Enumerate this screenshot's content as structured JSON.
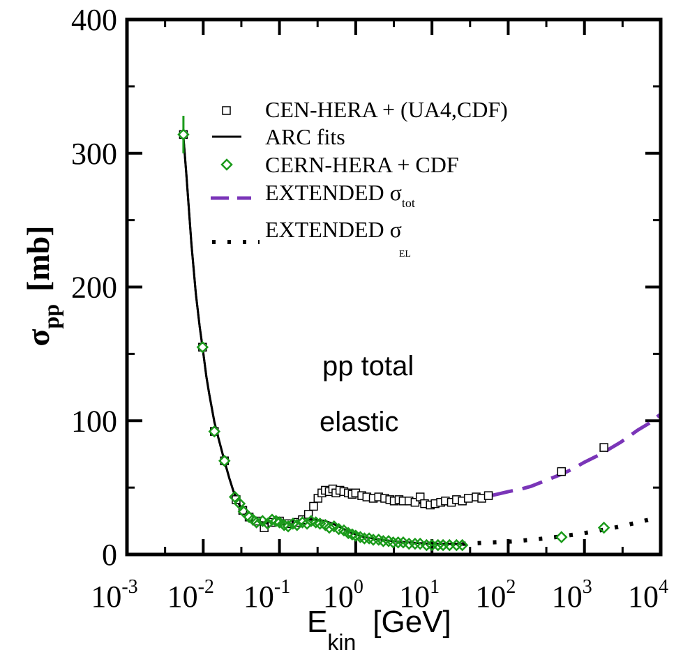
{
  "chart_data": {
    "type": "scatter",
    "x_scale": "log",
    "x_range": [
      0.001,
      10000
    ],
    "y_range": [
      0,
      400
    ],
    "x_ticks": [
      {
        "value": 0.001,
        "base": "10",
        "exp": "-3"
      },
      {
        "value": 0.01,
        "base": "10",
        "exp": "-2"
      },
      {
        "value": 0.1,
        "base": "10",
        "exp": "-1"
      },
      {
        "value": 1,
        "base": "10",
        "exp": "0"
      },
      {
        "value": 10,
        "base": "10",
        "exp": "1"
      },
      {
        "value": 100,
        "base": "10",
        "exp": "2"
      },
      {
        "value": 1000,
        "base": "10",
        "exp": "3"
      },
      {
        "value": 10000,
        "base": "10",
        "exp": "4"
      }
    ],
    "y_ticks": [
      {
        "value": 0,
        "label": "0"
      },
      {
        "value": 100,
        "label": "100"
      },
      {
        "value": 200,
        "label": "200"
      },
      {
        "value": 300,
        "label": "300"
      },
      {
        "value": 400,
        "label": "400"
      }
    ],
    "y_minor": [
      50,
      150,
      250,
      350
    ],
    "xlabel": {
      "main": "E",
      "sub": "kin",
      "unit": "[GeV]"
    },
    "ylabel": {
      "main": "σ",
      "sub": "pp",
      "unit": "[mb]"
    },
    "annotations": [
      {
        "text": "pp total",
        "x": 0.8,
        "y": 140
      },
      {
        "text": "elastic",
        "x": 0.8,
        "y": 100
      }
    ],
    "legend": {
      "placement": "top",
      "entries": [
        {
          "id": "total-data",
          "text": "CEN-HERA + (UA4,CDF)",
          "sub": ""
        },
        {
          "id": "fit",
          "text": "ARC fits",
          "sub": ""
        },
        {
          "id": "elastic-data",
          "text": "CERN-HERA + CDF",
          "sub": ""
        },
        {
          "id": "ext-tot",
          "text": "EXTENDED σ",
          "sub": "tot"
        },
        {
          "id": "ext-el",
          "text": "EXTENDED σ",
          "sub": "EL"
        }
      ]
    },
    "colors": {
      "fit": "#000000",
      "total_markers": "#000000",
      "elastic_markers": "#1a9a1a",
      "ext_tot": "#7a35b8",
      "ext_el": "#000000"
    },
    "series": [
      {
        "id": "total-data",
        "points": [
          [
            0.0055,
            314
          ],
          [
            0.0098,
            155
          ],
          [
            0.014,
            92
          ],
          [
            0.019,
            70
          ],
          [
            0.027,
            41
          ],
          [
            0.033,
            33
          ],
          [
            0.04,
            28
          ],
          [
            0.05,
            25
          ],
          [
            0.063,
            20
          ],
          [
            0.08,
            24
          ],
          [
            0.1,
            25
          ],
          [
            0.13,
            23
          ],
          [
            0.17,
            24
          ],
          [
            0.2,
            26
          ],
          [
            0.24,
            30
          ],
          [
            0.28,
            36
          ],
          [
            0.32,
            42
          ],
          [
            0.36,
            46
          ],
          [
            0.4,
            48
          ],
          [
            0.45,
            47
          ],
          [
            0.5,
            49
          ],
          [
            0.55,
            46
          ],
          [
            0.62,
            48
          ],
          [
            0.7,
            47
          ],
          [
            0.8,
            46
          ],
          [
            0.9,
            45
          ],
          [
            1.0,
            46
          ],
          [
            1.2,
            44
          ],
          [
            1.4,
            43
          ],
          [
            1.7,
            42
          ],
          [
            2.0,
            43
          ],
          [
            2.4,
            42
          ],
          [
            2.8,
            41
          ],
          [
            3.2,
            40
          ],
          [
            3.7,
            41
          ],
          [
            4.2,
            40
          ],
          [
            5.0,
            40
          ],
          [
            6.0,
            39
          ],
          [
            7.0,
            43
          ],
          [
            8.0,
            38
          ],
          [
            9.5,
            37
          ],
          [
            11,
            38
          ],
          [
            13,
            39
          ],
          [
            15,
            40
          ],
          [
            18,
            39
          ],
          [
            21,
            41
          ],
          [
            25,
            40
          ],
          [
            30,
            42
          ],
          [
            38,
            43
          ],
          [
            45,
            42
          ],
          [
            55,
            44
          ],
          [
            500,
            62
          ],
          [
            1800,
            80
          ]
        ]
      },
      {
        "id": "elastic-data",
        "points": [
          [
            0.0055,
            314
          ],
          [
            0.0098,
            155
          ],
          [
            0.014,
            92
          ],
          [
            0.019,
            70
          ],
          [
            0.026,
            43
          ],
          [
            0.03,
            38
          ],
          [
            0.034,
            32
          ],
          [
            0.04,
            28
          ],
          [
            0.045,
            26
          ],
          [
            0.05,
            24
          ],
          [
            0.06,
            25
          ],
          [
            0.07,
            23
          ],
          [
            0.08,
            26
          ],
          [
            0.09,
            25
          ],
          [
            0.1,
            24
          ],
          [
            0.115,
            22
          ],
          [
            0.13,
            21
          ],
          [
            0.15,
            23
          ],
          [
            0.17,
            22
          ],
          [
            0.2,
            24
          ],
          [
            0.23,
            23
          ],
          [
            0.26,
            25
          ],
          [
            0.3,
            24
          ],
          [
            0.34,
            23
          ],
          [
            0.4,
            22
          ],
          [
            0.45,
            20
          ],
          [
            0.52,
            21
          ],
          [
            0.6,
            19
          ],
          [
            0.7,
            18
          ],
          [
            0.8,
            16
          ],
          [
            0.9,
            15
          ],
          [
            1.0,
            14
          ],
          [
            1.15,
            13
          ],
          [
            1.3,
            12
          ],
          [
            1.5,
            12
          ],
          [
            1.7,
            11
          ],
          [
            2.0,
            11
          ],
          [
            2.3,
            10
          ],
          [
            2.7,
            10
          ],
          [
            3.1,
            9
          ],
          [
            3.6,
            9
          ],
          [
            4.2,
            9
          ],
          [
            5.0,
            8
          ],
          [
            6.0,
            8
          ],
          [
            7.0,
            8
          ],
          [
            8.5,
            7
          ],
          [
            10,
            7
          ],
          [
            12,
            7
          ],
          [
            14,
            7
          ],
          [
            17,
            7
          ],
          [
            21,
            7
          ],
          [
            25,
            7
          ],
          [
            500,
            13
          ],
          [
            1800,
            20
          ]
        ]
      },
      {
        "id": "fit-total",
        "points": [
          [
            0.0055,
            312
          ],
          [
            0.006,
            285
          ],
          [
            0.007,
            232
          ],
          [
            0.008,
            195
          ],
          [
            0.009,
            170
          ],
          [
            0.0098,
            155
          ],
          [
            0.011,
            133
          ],
          [
            0.012,
            120
          ],
          [
            0.014,
            99
          ],
          [
            0.016,
            86
          ],
          [
            0.019,
            70
          ],
          [
            0.022,
            57
          ],
          [
            0.025,
            47
          ],
          [
            0.028,
            40
          ],
          [
            0.032,
            34
          ],
          [
            0.036,
            30
          ],
          [
            0.04,
            28
          ],
          [
            0.05,
            25
          ],
          [
            0.06,
            24
          ],
          [
            0.08,
            24
          ],
          [
            0.1,
            24
          ],
          [
            0.13,
            24
          ],
          [
            0.17,
            25
          ],
          [
            0.2,
            26
          ],
          [
            0.24,
            29
          ],
          [
            0.28,
            35
          ],
          [
            0.32,
            41
          ],
          [
            0.36,
            45
          ],
          [
            0.4,
            47
          ],
          [
            0.45,
            48
          ],
          [
            0.5,
            48
          ],
          [
            0.6,
            47
          ],
          [
            0.7,
            46
          ],
          [
            0.8,
            45
          ],
          [
            1.0,
            44
          ],
          [
            1.3,
            43
          ],
          [
            1.7,
            42
          ],
          [
            2.2,
            41
          ],
          [
            3.0,
            40
          ],
          [
            4.0,
            39.5
          ],
          [
            5.0,
            39
          ],
          [
            7.0,
            38.5
          ],
          [
            10,
            38
          ],
          [
            15,
            39
          ],
          [
            20,
            40
          ],
          [
            30,
            41
          ],
          [
            45,
            42
          ],
          [
            60,
            42.5
          ]
        ]
      },
      {
        "id": "fit-elastic",
        "points": [
          [
            0.0055,
            312
          ],
          [
            0.006,
            285
          ],
          [
            0.007,
            232
          ],
          [
            0.008,
            195
          ],
          [
            0.009,
            170
          ],
          [
            0.0098,
            155
          ],
          [
            0.011,
            133
          ],
          [
            0.012,
            120
          ],
          [
            0.014,
            99
          ],
          [
            0.016,
            86
          ],
          [
            0.019,
            70
          ],
          [
            0.022,
            57
          ],
          [
            0.025,
            47
          ],
          [
            0.028,
            40
          ],
          [
            0.032,
            34
          ],
          [
            0.036,
            30
          ],
          [
            0.04,
            28
          ],
          [
            0.05,
            25
          ],
          [
            0.06,
            24
          ],
          [
            0.08,
            24
          ],
          [
            0.1,
            24
          ],
          [
            0.13,
            24
          ],
          [
            0.17,
            25
          ],
          [
            0.2,
            25
          ],
          [
            0.25,
            26
          ],
          [
            0.3,
            26
          ],
          [
            0.35,
            25.5
          ],
          [
            0.4,
            25
          ],
          [
            0.5,
            23
          ],
          [
            0.6,
            21
          ],
          [
            0.7,
            19
          ],
          [
            0.8,
            17
          ],
          [
            1.0,
            15
          ],
          [
            1.3,
            13
          ],
          [
            1.7,
            12
          ],
          [
            2.2,
            11
          ],
          [
            3.0,
            10
          ],
          [
            4.0,
            9.5
          ],
          [
            5.0,
            9
          ],
          [
            7.0,
            8.5
          ],
          [
            10,
            8
          ],
          [
            15,
            8
          ],
          [
            20,
            8
          ],
          [
            25,
            8
          ]
        ]
      },
      {
        "id": "ext-tot",
        "points": [
          [
            25,
            40
          ],
          [
            40,
            42
          ],
          [
            60,
            44
          ],
          [
            100,
            47
          ],
          [
            150,
            49
          ],
          [
            200,
            51
          ],
          [
            300,
            55
          ],
          [
            500,
            60
          ],
          [
            700,
            64
          ],
          [
            1000,
            69
          ],
          [
            1500,
            74
          ],
          [
            2000,
            78
          ],
          [
            3000,
            84
          ],
          [
            4000,
            89
          ],
          [
            5000,
            93
          ],
          [
            7000,
            98
          ],
          [
            10000,
            105
          ]
        ]
      },
      {
        "id": "ext-el",
        "points": [
          [
            25,
            8
          ],
          [
            40,
            8.5
          ],
          [
            60,
            9
          ],
          [
            100,
            9.5
          ],
          [
            200,
            11
          ],
          [
            300,
            12
          ],
          [
            500,
            13.5
          ],
          [
            1000,
            16
          ],
          [
            2000,
            19
          ],
          [
            3000,
            21
          ],
          [
            5000,
            24
          ],
          [
            7000,
            26
          ],
          [
            10000,
            28
          ]
        ]
      }
    ]
  }
}
